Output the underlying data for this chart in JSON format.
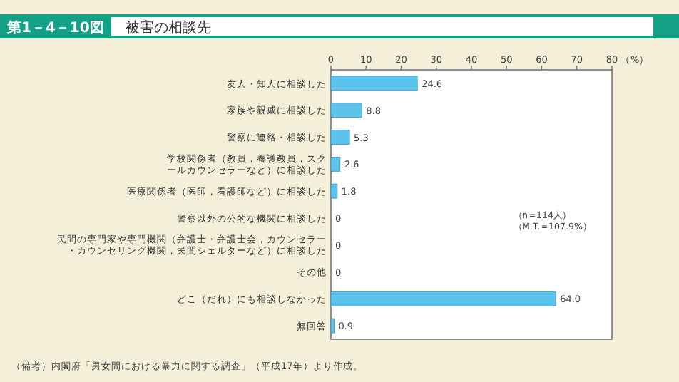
{
  "chart_data": {
    "type": "bar",
    "orientation": "horizontal",
    "subtitle": "第1－4－10図",
    "title": "被害の相談先",
    "xlabel": "（%）",
    "categories": [
      "友人・知人に相談した",
      "家族や親戚に相談した",
      "警察に連絡・相談した",
      "学校関係者（教員，養護教員，スクールカウンセラーなど）に相談した",
      "医療関係者（医師，看護師など）に相談した",
      "警察以外の公的な機関に相談した",
      "民間の専門家や専門機関（弁護士・弁護士会，カウンセラー・カウンセリング機関，民間シェルターなど）に相談した",
      "その他",
      "どこ（だれ）にも相談しなかった",
      "無回答"
    ],
    "values": [
      24.6,
      8.8,
      5.3,
      2.6,
      1.8,
      0,
      0,
      0,
      64.0,
      0.9
    ],
    "value_labels": [
      "24.6",
      "8.8",
      "5.3",
      "2.6",
      "1.8",
      "0",
      "0",
      "0",
      "64.0",
      "0.9"
    ],
    "color": "#5cc3ec",
    "xlim": [
      0,
      80
    ],
    "xticks": [
      0,
      10,
      20,
      30,
      40,
      50,
      60,
      70,
      80
    ],
    "grid": false,
    "annotations": [
      "（n＝114人）",
      "（M.T.＝107.9%）",
      "（備考）内閣府「男女間における暴力に関する調査」（平成17年）より作成。"
    ]
  }
}
